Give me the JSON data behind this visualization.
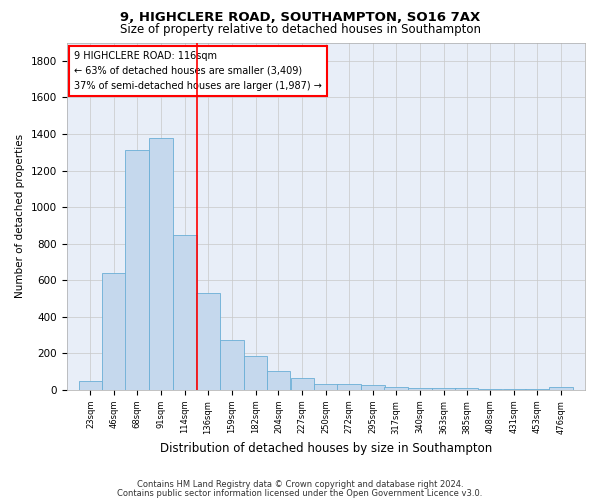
{
  "title1": "9, HIGHCLERE ROAD, SOUTHAMPTON, SO16 7AX",
  "title2": "Size of property relative to detached houses in Southampton",
  "xlabel": "Distribution of detached houses by size in Southampton",
  "ylabel": "Number of detached properties",
  "footer1": "Contains HM Land Registry data © Crown copyright and database right 2024.",
  "footer2": "Contains public sector information licensed under the Open Government Licence v3.0.",
  "annotation_title": "9 HIGHCLERE ROAD: 116sqm",
  "annotation_line1": "← 63% of detached houses are smaller (3,409)",
  "annotation_line2": "37% of semi-detached houses are larger (1,987) →",
  "bar_color": "#c5d8ed",
  "bar_edge_color": "#6aaed6",
  "vline_color": "red",
  "categories": [
    23,
    46,
    68,
    91,
    114,
    136,
    159,
    182,
    204,
    227,
    250,
    272,
    295,
    317,
    340,
    363,
    385,
    408,
    431,
    453,
    476
  ],
  "values": [
    50,
    640,
    1310,
    1380,
    850,
    530,
    275,
    185,
    105,
    65,
    35,
    35,
    25,
    15,
    10,
    10,
    10,
    5,
    5,
    5,
    15
  ],
  "ylim": [
    0,
    1900
  ],
  "yticks": [
    0,
    200,
    400,
    600,
    800,
    1000,
    1200,
    1400,
    1600,
    1800
  ],
  "bin_width": 23,
  "background_color": "#ffffff",
  "axes_bg_color": "#e8eef8",
  "grid_color": "#c8c8c8"
}
